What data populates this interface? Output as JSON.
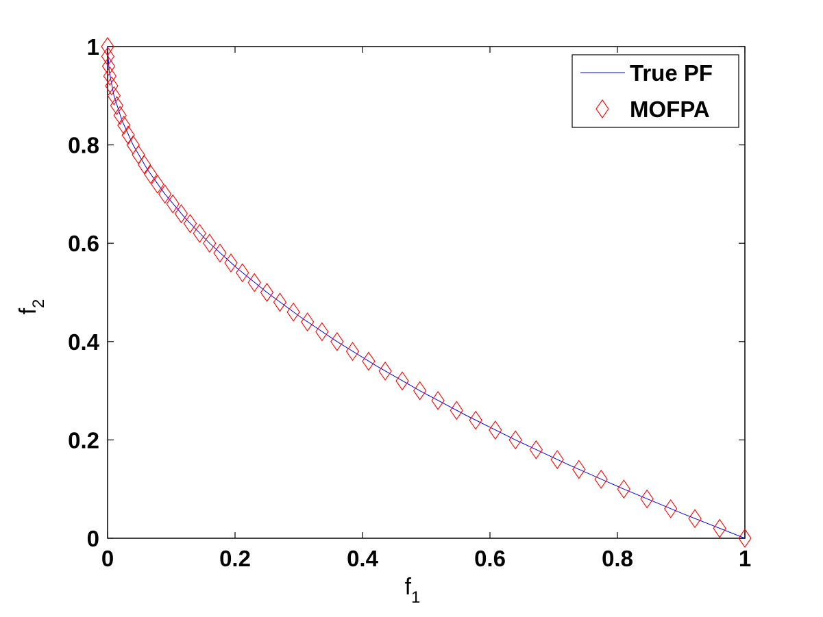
{
  "chart_data": {
    "type": "line",
    "xlabel": {
      "main": "f",
      "sub": "1"
    },
    "ylabel": {
      "main": "f",
      "sub": "2"
    },
    "xlim": [
      0,
      1
    ],
    "ylim": [
      0,
      1
    ],
    "xticks": [
      "0",
      "0.2",
      "0.4",
      "0.6",
      "0.8",
      "1"
    ],
    "yticks": [
      "0",
      "0.2",
      "0.4",
      "0.6",
      "0.8",
      "1"
    ],
    "grid": false,
    "legend_position": "top-right",
    "series": [
      {
        "name": "True PF",
        "kind": "line",
        "color": "#0000ff",
        "x": [
          0,
          0.0025,
          0.01,
          0.0225,
          0.04,
          0.0625,
          0.09,
          0.1225,
          0.16,
          0.2025,
          0.25,
          0.3025,
          0.36,
          0.4225,
          0.49,
          0.5625,
          0.64,
          0.7225,
          0.81,
          0.9025,
          1
        ],
        "y": [
          1,
          0.95,
          0.9,
          0.85,
          0.8,
          0.75,
          0.7,
          0.65,
          0.6,
          0.55,
          0.5,
          0.45,
          0.4,
          0.35,
          0.3,
          0.25,
          0.2,
          0.15,
          0.1,
          0.05,
          0
        ]
      },
      {
        "name": "MOFPA",
        "kind": "scatter",
        "marker": "diamond",
        "color": "#ff0000",
        "x": [
          0,
          0.0004,
          0.0016,
          0.0036,
          0.0064,
          0.01,
          0.0144,
          0.0196,
          0.0256,
          0.0324,
          0.04,
          0.0484,
          0.0576,
          0.0676,
          0.0784,
          0.09,
          0.1024,
          0.1156,
          0.1296,
          0.1444,
          0.16,
          0.1764,
          0.1936,
          0.2116,
          0.2304,
          0.25,
          0.2704,
          0.2916,
          0.3136,
          0.3364,
          0.36,
          0.3844,
          0.4096,
          0.4356,
          0.4624,
          0.49,
          0.5184,
          0.5476,
          0.5776,
          0.6084,
          0.64,
          0.6724,
          0.7056,
          0.7396,
          0.7744,
          0.81,
          0.8464,
          0.8836,
          0.9216,
          0.9604,
          1
        ],
        "y": [
          1,
          0.98,
          0.96,
          0.94,
          0.92,
          0.9,
          0.88,
          0.86,
          0.84,
          0.82,
          0.8,
          0.78,
          0.76,
          0.74,
          0.72,
          0.7,
          0.68,
          0.66,
          0.64,
          0.62,
          0.6,
          0.58,
          0.56,
          0.54,
          0.52,
          0.5,
          0.48,
          0.46,
          0.44,
          0.42,
          0.4,
          0.38,
          0.36,
          0.34,
          0.32,
          0.3,
          0.28,
          0.26,
          0.24,
          0.22,
          0.2,
          0.18,
          0.16,
          0.14,
          0.12,
          0.1,
          0.08,
          0.06,
          0.04,
          0.02,
          0
        ]
      }
    ]
  }
}
